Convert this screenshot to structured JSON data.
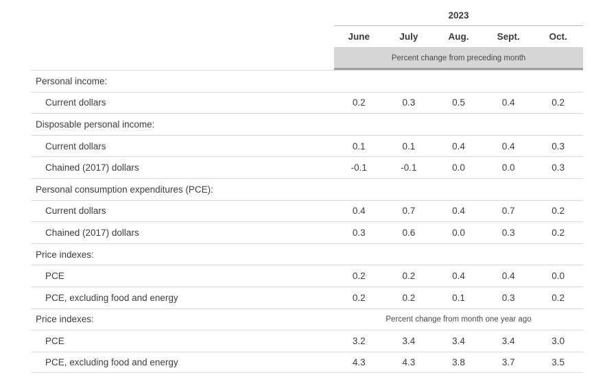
{
  "header": {
    "year": "2023",
    "months": [
      "June",
      "July",
      "Aug.",
      "Sept.",
      "Oct."
    ],
    "unit_note": "Percent change from preceding month"
  },
  "table": {
    "rows": [
      {
        "type": "section",
        "label": "Personal income:"
      },
      {
        "type": "data",
        "label": "Current dollars",
        "values": [
          "0.2",
          "0.3",
          "0.5",
          "0.4",
          "0.2"
        ]
      },
      {
        "type": "section",
        "label": "Disposable personal income:"
      },
      {
        "type": "data",
        "label": "Current dollars",
        "values": [
          "0.1",
          "0.1",
          "0.4",
          "0.4",
          "0.3"
        ]
      },
      {
        "type": "data",
        "label": "Chained (2017) dollars",
        "values": [
          "-0.1",
          "-0.1",
          "0.0",
          "0.0",
          "0.3"
        ]
      },
      {
        "type": "section",
        "label": "Personal consumption expenditures (PCE):"
      },
      {
        "type": "data",
        "label": "Current dollars",
        "values": [
          "0.4",
          "0.7",
          "0.4",
          "0.7",
          "0.2"
        ]
      },
      {
        "type": "data",
        "label": "Chained (2017) dollars",
        "values": [
          "0.3",
          "0.6",
          "0.0",
          "0.3",
          "0.2"
        ]
      },
      {
        "type": "section",
        "label": "Price indexes:"
      },
      {
        "type": "data",
        "label": "PCE",
        "values": [
          "0.2",
          "0.2",
          "0.4",
          "0.4",
          "0.0"
        ]
      },
      {
        "type": "data",
        "label": "PCE, excluding food and energy",
        "values": [
          "0.2",
          "0.2",
          "0.1",
          "0.3",
          "0.2"
        ]
      },
      {
        "type": "section",
        "label": "Price indexes:",
        "note": "Percent change from month one year ago"
      },
      {
        "type": "data",
        "label": "PCE",
        "values": [
          "3.2",
          "3.4",
          "3.4",
          "3.4",
          "3.0"
        ]
      },
      {
        "type": "data",
        "label": "PCE, excluding food and energy",
        "values": [
          "4.3",
          "4.3",
          "3.8",
          "3.7",
          "3.5"
        ]
      }
    ]
  },
  "colors": {
    "text": "#3d3d3d",
    "band_background": "#d6d6d6",
    "band_border": "#9f9f9f",
    "row_border": "#dadada",
    "header_rule": "#b3b3b3"
  }
}
